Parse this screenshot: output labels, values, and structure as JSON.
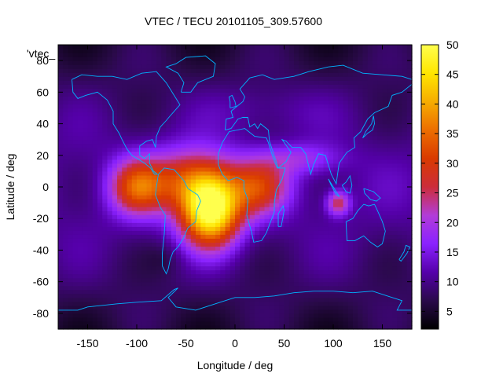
{
  "chart_data": {
    "type": "heatmap",
    "title": "VTEC / TECU 20101105_309.57600",
    "xlabel": "Longitude / deg",
    "ylabel": "Latitude / deg",
    "xlim": [
      -180,
      180
    ],
    "ylim": [
      -90,
      90
    ],
    "x_ticks": [
      -150,
      -100,
      -50,
      0,
      50,
      100,
      150
    ],
    "y_ticks": [
      -80,
      -60,
      -40,
      -20,
      0,
      20,
      40,
      60,
      80
    ],
    "colorbar": {
      "range": [
        2,
        50
      ],
      "ticks": [
        5,
        10,
        15,
        20,
        25,
        30,
        35,
        40,
        45,
        50
      ],
      "colors": [
        "#000000",
        "#2a0a4a",
        "#5500aa",
        "#8a22ff",
        "#b23cd8",
        "#cc2d3a",
        "#d93a00",
        "#ec6e00",
        "#f6ad00",
        "#ffe600",
        "#ffff4d"
      ]
    },
    "legend_entry": "'vtec_",
    "grid": false,
    "field": {
      "background": 11,
      "peaks": [
        {
          "lon": -25,
          "lat": -15,
          "value": 50
        },
        {
          "lon": -45,
          "lat": 5,
          "value": 40
        },
        {
          "lon": -95,
          "lat": 0,
          "value": 36
        },
        {
          "lon": 30,
          "lat": 0,
          "value": 34
        },
        {
          "lon": 100,
          "lat": -10,
          "value": 30
        }
      ]
    },
    "coastline_color": "#00b4ff"
  }
}
